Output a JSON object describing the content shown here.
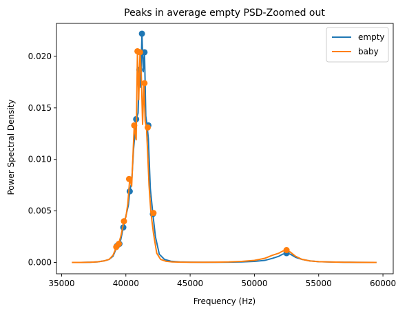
{
  "chart_data": {
    "type": "line",
    "title": "Peaks in average empty PSD-Zoomed out",
    "xlabel": "Frequency (Hz)",
    "ylabel": "Power Spectral Density",
    "xlim": [
      34600,
      60800
    ],
    "ylim": [
      -0.0011,
      0.0232
    ],
    "xticks": [
      35000,
      40000,
      45000,
      50000,
      55000,
      60000
    ],
    "xtick_labels": [
      "35000",
      "40000",
      "45000",
      "50000",
      "55000",
      "60000"
    ],
    "yticks": [
      0.0,
      0.005,
      0.01,
      0.015,
      0.02
    ],
    "ytick_labels": [
      "0.000",
      "0.005",
      "0.010",
      "0.015",
      "0.020"
    ],
    "grid": false,
    "legend_position": "top-right",
    "series": [
      {
        "name": "empty",
        "color": "#1f77b4",
        "x": [
          35800,
          36500,
          37200,
          37800,
          38300,
          38700,
          39000,
          39200,
          39400,
          39600,
          39800,
          40000,
          40200,
          40300,
          40450,
          40600,
          40800,
          40950,
          41050,
          41150,
          41250,
          41350,
          41450,
          41550,
          41650,
          41750,
          41900,
          42100,
          42300,
          42600,
          43000,
          43500,
          44200,
          45000,
          46000,
          47000,
          48000,
          49000,
          50000,
          50800,
          51400,
          51900,
          52200,
          52500,
          52800,
          53200,
          53700,
          54300,
          55000,
          56000,
          57000,
          58000,
          59500
        ],
        "y": [
          0.0,
          0.0,
          2e-05,
          6e-05,
          0.00015,
          0.0003,
          0.0006,
          0.0012,
          0.0016,
          0.0022,
          0.0034,
          0.0045,
          0.0056,
          0.0069,
          0.0078,
          0.011,
          0.0139,
          0.0145,
          0.0187,
          0.017,
          0.0222,
          0.0185,
          0.0204,
          0.0142,
          0.0133,
          0.012,
          0.0072,
          0.0047,
          0.0025,
          0.0008,
          0.0003,
          0.00012,
          5e-05,
          3e-05,
          2e-05,
          2e-05,
          3e-05,
          5e-05,
          0.0001,
          0.0002,
          0.0004,
          0.0006,
          0.0008,
          0.0009,
          0.0008,
          0.0005,
          0.0003,
          0.00015,
          8e-05,
          4e-05,
          2e-05,
          1e-05,
          0.0
        ],
        "peaks_x": [
          39300,
          39500,
          39800,
          40300,
          40800,
          41050,
          41250,
          41450,
          41750,
          42100,
          52500
        ],
        "peaks_y": [
          0.0016,
          0.0018,
          0.0034,
          0.0069,
          0.0139,
          0.0187,
          0.0222,
          0.0204,
          0.0133,
          0.0047,
          0.0009
        ]
      },
      {
        "name": "baby",
        "color": "#ff7f0e",
        "x": [
          35800,
          36500,
          37200,
          37800,
          38300,
          38700,
          39000,
          39200,
          39400,
          39600,
          39850,
          40000,
          40150,
          40300,
          40450,
          40650,
          40800,
          40900,
          41000,
          41100,
          41200,
          41300,
          41400,
          41500,
          41600,
          41700,
          41800,
          41950,
          42150,
          42400,
          42700,
          43100,
          43600,
          44300,
          45000,
          46000,
          47000,
          48000,
          49000,
          50000,
          50800,
          51400,
          51900,
          52200,
          52500,
          52800,
          53200,
          53700,
          54300,
          55000,
          56000,
          57000,
          58000,
          59500
        ],
        "y": [
          0.0,
          0.0,
          2e-05,
          6e-05,
          0.00015,
          0.0003,
          0.0007,
          0.0013,
          0.0017,
          0.0025,
          0.004,
          0.0044,
          0.0057,
          0.0081,
          0.0074,
          0.0133,
          0.0119,
          0.0205,
          0.0158,
          0.0204,
          0.0182,
          0.0134,
          0.0174,
          0.0137,
          0.0131,
          0.0105,
          0.0075,
          0.0048,
          0.0028,
          0.0009,
          0.0003,
          0.00012,
          5e-05,
          3e-05,
          2e-05,
          2e-05,
          3e-05,
          5e-05,
          0.0001,
          0.0002,
          0.0004,
          0.0007,
          0.0009,
          0.0011,
          0.0012,
          0.001,
          0.0006,
          0.0003,
          0.00015,
          8e-05,
          4e-05,
          2e-05,
          1e-05,
          0.0
        ],
        "peaks_x": [
          39250,
          39450,
          39850,
          40250,
          40650,
          40900,
          41100,
          41450,
          41700,
          42150,
          52500
        ],
        "peaks_y": [
          0.0015,
          0.0018,
          0.004,
          0.0081,
          0.0133,
          0.0205,
          0.0204,
          0.0174,
          0.0131,
          0.0048,
          0.0012
        ]
      }
    ]
  }
}
